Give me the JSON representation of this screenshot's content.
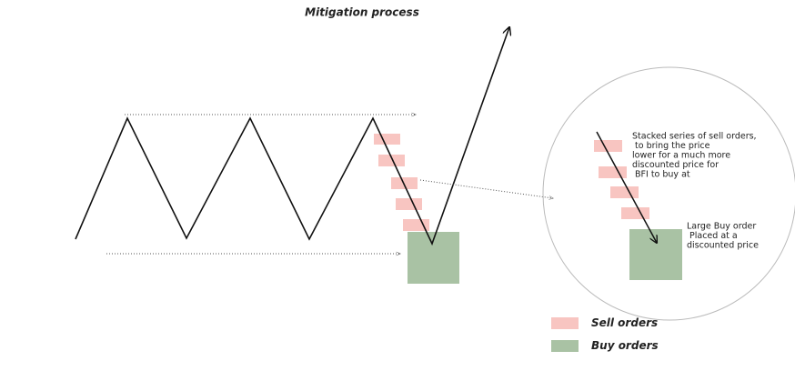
{
  "title": "Mitigation process",
  "annotations": {
    "sell_note": [
      "Stacked series of sell orders,",
      " to bring the price",
      "lower for a much more",
      "discounted price for",
      " BFI to buy at"
    ],
    "buy_note": [
      "Large Buy order",
      " Placed at a",
      "discounted price"
    ]
  },
  "legend": [
    {
      "label": "Sell orders",
      "color": "#f8c5c1"
    },
    {
      "label": "Buy orders",
      "color": "#a9c2a4"
    }
  ]
}
